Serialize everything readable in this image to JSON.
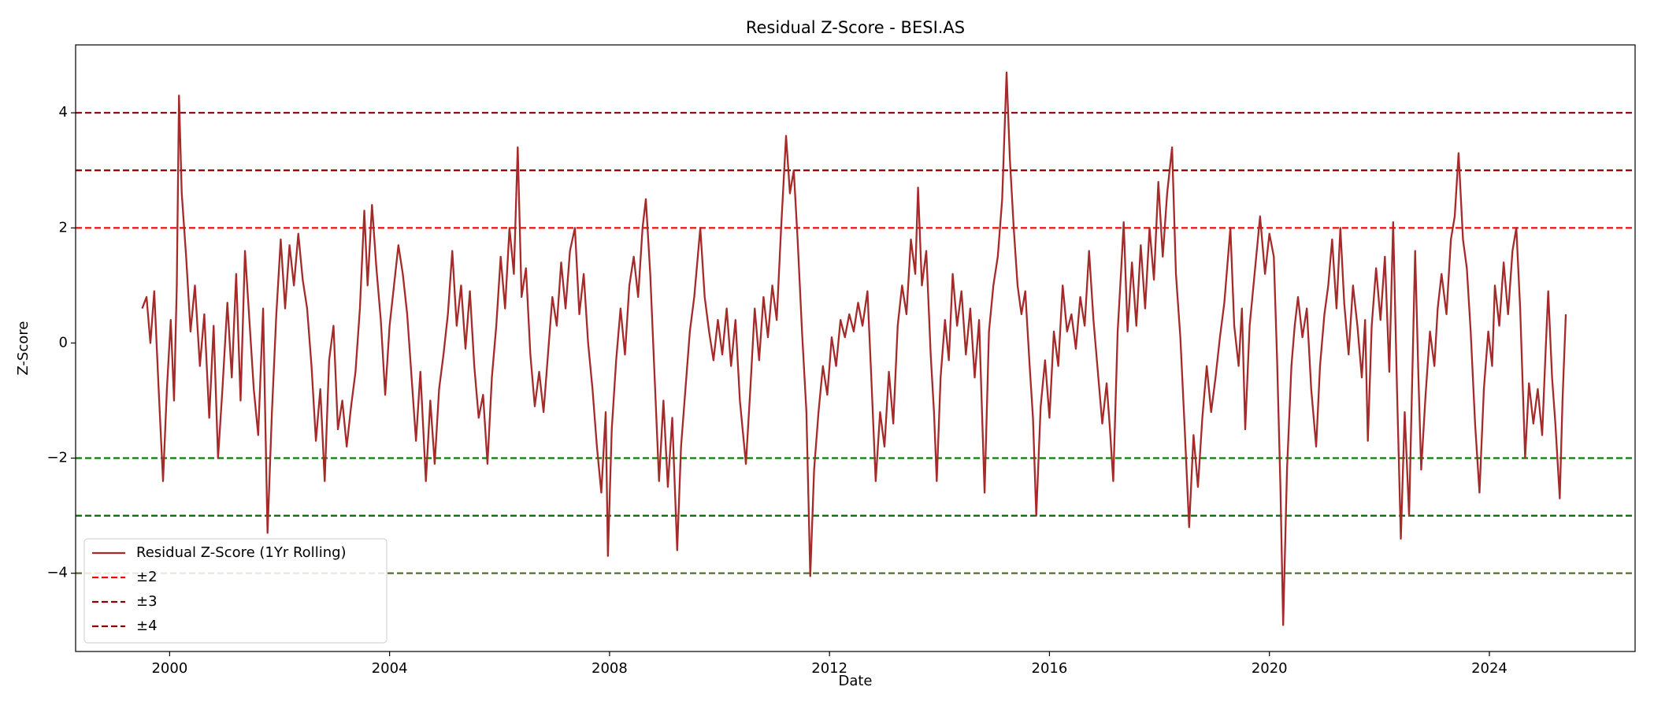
{
  "chart_data": {
    "type": "line",
    "title": "Residual Z-Score - BESI.AS",
    "x_label": "Date",
    "y_label": "Z-Score",
    "xlim": [
      1998.29,
      2026.65
    ],
    "ylim": [
      -5.36,
      5.18
    ],
    "xticks": [
      2000,
      2004,
      2008,
      2012,
      2016,
      2020,
      2024
    ],
    "yticks": [
      {
        "value": -4,
        "label": "−4"
      },
      {
        "value": -2,
        "label": "−2"
      },
      0,
      2,
      4
    ],
    "legend": "lower left",
    "reference_lines": [
      {
        "name": "±2",
        "values": [
          2,
          -2
        ],
        "colors": [
          "#ff0000",
          "#008000"
        ]
      },
      {
        "name": "±3",
        "values": [
          3,
          -3
        ],
        "colors": [
          "#8b0000",
          "#006400"
        ]
      },
      {
        "name": "±4",
        "values": [
          4,
          -4
        ],
        "colors": [
          "#8b0000",
          "#556b2f"
        ]
      }
    ],
    "series": [
      {
        "name": "Residual Z-Score (1Yr Rolling)",
        "color": "#a52a2a",
        "x": [
          1999.5,
          1999.58,
          1999.65,
          1999.72,
          1999.8,
          1999.88,
          1999.95,
          2000.02,
          2000.08,
          2000.13,
          2000.17,
          2000.22,
          2000.3,
          2000.38,
          2000.46,
          2000.55,
          2000.63,
          2000.72,
          2000.8,
          2000.88,
          2000.96,
          2001.05,
          2001.13,
          2001.21,
          2001.29,
          2001.37,
          2001.45,
          2001.53,
          2001.61,
          2001.7,
          2001.78,
          2001.86,
          2001.94,
          2002.02,
          2002.1,
          2002.18,
          2002.26,
          2002.34,
          2002.42,
          2002.5,
          2002.58,
          2002.66,
          2002.74,
          2002.82,
          2002.9,
          2002.98,
          2003.06,
          2003.14,
          2003.22,
          2003.3,
          2003.38,
          2003.46,
          2003.54,
          2003.6,
          2003.68,
          2003.76,
          2003.84,
          2003.92,
          2004.0,
          2004.08,
          2004.16,
          2004.24,
          2004.32,
          2004.4,
          2004.48,
          2004.56,
          2004.66,
          2004.74,
          2004.82,
          2004.9,
          2004.98,
          2005.06,
          2005.14,
          2005.22,
          2005.3,
          2005.38,
          2005.46,
          2005.54,
          2005.62,
          2005.7,
          2005.78,
          2005.86,
          2005.94,
          2006.02,
          2006.1,
          2006.18,
          2006.26,
          2006.33,
          2006.4,
          2006.48,
          2006.56,
          2006.64,
          2006.72,
          2006.8,
          2006.88,
          2006.96,
          2007.04,
          2007.12,
          2007.2,
          2007.28,
          2007.37,
          2007.45,
          2007.53,
          2007.61,
          2007.69,
          2007.77,
          2007.85,
          2007.93,
          2007.97,
          2008.04,
          2008.12,
          2008.2,
          2008.28,
          2008.36,
          2008.44,
          2008.52,
          2008.6,
          2008.66,
          2008.74,
          2008.82,
          2008.9,
          2008.98,
          2009.06,
          2009.14,
          2009.23,
          2009.3,
          2009.38,
          2009.46,
          2009.54,
          2009.65,
          2009.73,
          2009.81,
          2009.89,
          2009.97,
          2010.05,
          2010.13,
          2010.21,
          2010.29,
          2010.37,
          2010.48,
          2010.56,
          2010.64,
          2010.72,
          2010.8,
          2010.88,
          2010.96,
          2011.04,
          2011.12,
          2011.21,
          2011.28,
          2011.35,
          2011.42,
          2011.5,
          2011.58,
          2011.65,
          2011.72,
          2011.8,
          2011.88,
          2011.96,
          2012.04,
          2012.12,
          2012.2,
          2012.28,
          2012.36,
          2012.44,
          2012.52,
          2012.6,
          2012.69,
          2012.76,
          2012.84,
          2012.92,
          2013.0,
          2013.08,
          2013.16,
          2013.24,
          2013.32,
          2013.4,
          2013.48,
          2013.56,
          2013.61,
          2013.68,
          2013.76,
          2013.84,
          2013.9,
          2013.95,
          2014.02,
          2014.1,
          2014.17,
          2014.24,
          2014.32,
          2014.4,
          2014.48,
          2014.56,
          2014.64,
          2014.72,
          2014.82,
          2014.9,
          2014.98,
          2015.06,
          2015.14,
          2015.22,
          2015.28,
          2015.35,
          2015.42,
          2015.49,
          2015.56,
          2015.64,
          2015.7,
          2015.76,
          2015.84,
          2015.92,
          2016.0,
          2016.08,
          2016.16,
          2016.24,
          2016.32,
          2016.4,
          2016.48,
          2016.56,
          2016.64,
          2016.72,
          2016.8,
          2016.88,
          2016.96,
          2017.04,
          2017.1,
          2017.16,
          2017.24,
          2017.3,
          2017.35,
          2017.42,
          2017.5,
          2017.58,
          2017.66,
          2017.74,
          2017.82,
          2017.9,
          2017.98,
          2018.06,
          2018.14,
          2018.23,
          2018.3,
          2018.38,
          2018.46,
          2018.54,
          2018.62,
          2018.7,
          2018.78,
          2018.86,
          2018.94,
          2019.02,
          2019.1,
          2019.18,
          2019.29,
          2019.36,
          2019.44,
          2019.5,
          2019.56,
          2019.64,
          2019.72,
          2019.83,
          2019.92,
          2020.0,
          2020.08,
          2020.14,
          2020.2,
          2020.25,
          2020.32,
          2020.4,
          2020.46,
          2020.52,
          2020.6,
          2020.68,
          2020.76,
          2020.85,
          2020.92,
          2021.0,
          2021.07,
          2021.14,
          2021.22,
          2021.29,
          2021.36,
          2021.44,
          2021.52,
          2021.6,
          2021.68,
          2021.74,
          2021.79,
          2021.86,
          2021.94,
          2022.02,
          2022.1,
          2022.18,
          2022.25,
          2022.32,
          2022.39,
          2022.46,
          2022.54,
          2022.6,
          2022.65,
          2022.71,
          2022.76,
          2022.84,
          2022.92,
          2023.0,
          2023.06,
          2023.13,
          2023.22,
          2023.3,
          2023.37,
          2023.44,
          2023.52,
          2023.59,
          2023.66,
          2023.74,
          2023.82,
          2023.9,
          2023.98,
          2024.05,
          2024.1,
          2024.18,
          2024.26,
          2024.34,
          2024.42,
          2024.49,
          2024.56,
          2024.65,
          2024.72,
          2024.8,
          2024.88,
          2024.96,
          2025.02,
          2025.07,
          2025.14,
          2025.2,
          2025.28,
          2025.33,
          2025.39
        ],
        "values": [
          0.6,
          0.8,
          0.0,
          0.9,
          -0.8,
          -2.4,
          -0.8,
          0.4,
          -1.0,
          1.0,
          4.3,
          2.6,
          1.5,
          0.2,
          1.0,
          -0.4,
          0.5,
          -1.3,
          0.3,
          -2.0,
          -0.8,
          0.7,
          -0.6,
          1.2,
          -1.0,
          1.6,
          0.4,
          -0.8,
          -1.6,
          0.6,
          -3.3,
          -1.2,
          0.5,
          1.8,
          0.6,
          1.7,
          1.0,
          1.9,
          1.1,
          0.6,
          -0.4,
          -1.7,
          -0.8,
          -2.4,
          -0.3,
          0.3,
          -1.5,
          -1.0,
          -1.8,
          -1.1,
          -0.5,
          0.6,
          2.3,
          1.0,
          2.4,
          1.3,
          0.4,
          -0.9,
          0.3,
          1.0,
          1.7,
          1.2,
          0.5,
          -0.6,
          -1.7,
          -0.5,
          -2.4,
          -1.0,
          -2.1,
          -0.8,
          -0.2,
          0.5,
          1.6,
          0.3,
          1.0,
          -0.1,
          0.9,
          -0.4,
          -1.3,
          -0.9,
          -2.1,
          -0.6,
          0.3,
          1.5,
          0.6,
          2.0,
          1.2,
          3.4,
          0.8,
          1.3,
          -0.2,
          -1.1,
          -0.5,
          -1.2,
          -0.2,
          0.8,
          0.3,
          1.4,
          0.6,
          1.6,
          2.0,
          0.5,
          1.2,
          0.0,
          -0.8,
          -1.8,
          -2.6,
          -1.2,
          -3.7,
          -1.5,
          -0.3,
          0.6,
          -0.2,
          1.0,
          1.5,
          0.8,
          2.0,
          2.5,
          1.2,
          -0.6,
          -2.4,
          -1.0,
          -2.5,
          -1.3,
          -3.6,
          -1.8,
          -0.8,
          0.2,
          0.8,
          2.0,
          0.8,
          0.2,
          -0.3,
          0.4,
          -0.2,
          0.6,
          -0.4,
          0.4,
          -1.0,
          -2.1,
          -0.8,
          0.6,
          -0.3,
          0.8,
          0.1,
          1.0,
          0.4,
          2.0,
          3.6,
          2.6,
          3.0,
          1.8,
          0.2,
          -1.2,
          -4.05,
          -2.2,
          -1.2,
          -0.4,
          -0.9,
          0.1,
          -0.4,
          0.4,
          0.1,
          0.5,
          0.2,
          0.7,
          0.3,
          0.9,
          -0.6,
          -2.4,
          -1.2,
          -1.8,
          -0.5,
          -1.4,
          0.3,
          1.0,
          0.5,
          1.8,
          1.2,
          2.7,
          1.0,
          1.6,
          -0.2,
          -1.2,
          -2.4,
          -0.6,
          0.4,
          -0.3,
          1.2,
          0.3,
          0.9,
          -0.2,
          0.6,
          -0.6,
          0.4,
          -2.6,
          0.2,
          1.0,
          1.5,
          2.5,
          4.7,
          3.2,
          2.0,
          1.0,
          0.5,
          0.9,
          -0.4,
          -1.3,
          -3.0,
          -1.1,
          -0.3,
          -1.3,
          0.2,
          -0.4,
          1.0,
          0.2,
          0.5,
          -0.1,
          0.8,
          0.3,
          1.6,
          0.4,
          -0.5,
          -1.4,
          -0.7,
          -1.5,
          -2.4,
          0.2,
          1.2,
          2.1,
          0.2,
          1.4,
          0.3,
          1.7,
          0.6,
          2.0,
          1.1,
          2.8,
          1.5,
          2.6,
          3.4,
          1.2,
          0.1,
          -1.5,
          -3.2,
          -1.6,
          -2.5,
          -1.3,
          -0.4,
          -1.2,
          -0.6,
          0.1,
          0.7,
          2.0,
          0.3,
          -0.4,
          0.6,
          -1.5,
          0.3,
          1.1,
          2.2,
          1.2,
          1.9,
          1.5,
          -0.3,
          -2.5,
          -4.9,
          -2.2,
          -0.4,
          0.3,
          0.8,
          0.1,
          0.6,
          -0.8,
          -1.8,
          -0.4,
          0.5,
          1.0,
          1.8,
          0.6,
          2.0,
          0.7,
          -0.2,
          1.0,
          0.3,
          -0.6,
          0.4,
          -1.7,
          0.3,
          1.3,
          0.4,
          1.5,
          -0.5,
          2.1,
          -0.8,
          -3.4,
          -1.2,
          -3.0,
          -0.5,
          1.6,
          -0.6,
          -2.2,
          -0.9,
          0.2,
          -0.4,
          0.6,
          1.2,
          0.5,
          1.8,
          2.2,
          3.3,
          1.8,
          1.3,
          0.2,
          -1.4,
          -2.6,
          -0.8,
          0.2,
          -0.4,
          1.0,
          0.3,
          1.4,
          0.5,
          1.6,
          2.0,
          0.6,
          -2.0,
          -0.7,
          -1.4,
          -0.8,
          -1.6,
          -0.2,
          0.9,
          -0.6,
          -1.4,
          -2.7,
          -1.0,
          0.5
        ]
      }
    ]
  }
}
